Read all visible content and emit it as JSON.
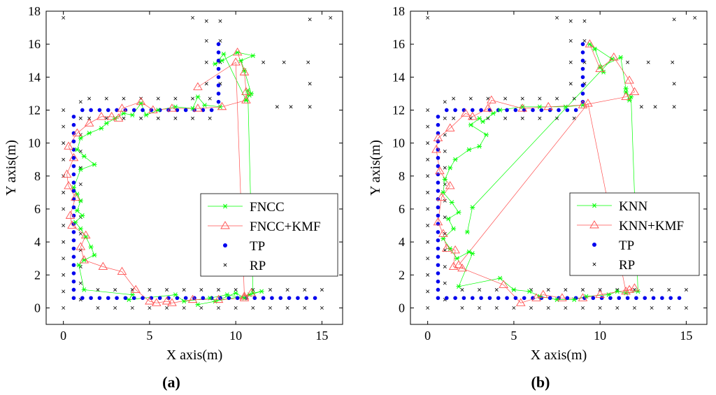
{
  "colors": {
    "trajectory_a": "#00ff00",
    "corrected": "#ff5050",
    "tp": "#0000ee",
    "rp": "#000000"
  },
  "chart_data": [
    {
      "id": "a",
      "type": "scatter",
      "panel_label": "(a)",
      "xlabel": "X axis(m)",
      "ylabel": "Y axis(m)",
      "xlim": [
        -1,
        16.2
      ],
      "ylim": [
        -1,
        18
      ],
      "xticks": [
        0,
        5,
        10,
        15
      ],
      "yticks": [
        0,
        2,
        4,
        6,
        8,
        10,
        12,
        14,
        16,
        18
      ],
      "legend_position": "right",
      "tp_points": "corridor grid",
      "rp_points": "reference grid",
      "series": [
        {
          "name": "FNCC",
          "marker": "star",
          "color": "#00ff00",
          "points": [
            [
              9.1,
              12.2
            ],
            [
              8.2,
              12.3
            ],
            [
              7.8,
              12.8
            ],
            [
              7.5,
              12.1
            ],
            [
              6.5,
              12.2
            ],
            [
              5.5,
              12.0
            ],
            [
              4.8,
              11.7
            ],
            [
              4.5,
              12.4
            ],
            [
              4.0,
              11.7
            ],
            [
              3.5,
              11.8
            ],
            [
              3.0,
              11.5
            ],
            [
              2.5,
              11.2
            ],
            [
              2.2,
              10.9
            ],
            [
              1.5,
              10.6
            ],
            [
              1.0,
              10.3
            ],
            [
              0.8,
              9.6
            ],
            [
              1.2,
              9.2
            ],
            [
              1.8,
              8.7
            ],
            [
              1.0,
              8.4
            ],
            [
              0.6,
              7.3
            ],
            [
              0.8,
              6.9
            ],
            [
              1.0,
              6.5
            ],
            [
              0.8,
              5.9
            ],
            [
              1.1,
              5.6
            ],
            [
              0.7,
              5.2
            ],
            [
              1.0,
              4.8
            ],
            [
              1.3,
              4.3
            ],
            [
              1.6,
              3.7
            ],
            [
              1.8,
              3.2
            ],
            [
              1.2,
              2.9
            ],
            [
              0.9,
              2.6
            ],
            [
              1.2,
              1.1
            ],
            [
              4.0,
              0.8
            ],
            [
              3.8,
              0.5
            ],
            [
              6.5,
              0.8
            ],
            [
              7.0,
              0.4
            ],
            [
              8.5,
              0.6
            ],
            [
              9.5,
              0.8
            ],
            [
              10.5,
              0.6
            ],
            [
              10.0,
              0.9
            ],
            [
              8.8,
              0.4
            ],
            [
              7.8,
              0.2
            ],
            [
              10.8,
              0.8
            ],
            [
              11.5,
              1.0
            ],
            [
              11.0,
              0.9
            ],
            [
              10.7,
              13.2
            ],
            [
              10.6,
              12.6
            ],
            [
              10.8,
              12.9
            ],
            [
              10.9,
              13.0
            ],
            [
              10.5,
              14.4
            ],
            [
              10.3,
              15.0
            ],
            [
              11.0,
              15.3
            ],
            [
              10.1,
              15.5
            ],
            [
              9.2,
              15.0
            ],
            [
              8.8,
              14.8
            ],
            [
              9.3,
              15.4
            ],
            [
              10.6,
              12.6
            ]
          ]
        },
        {
          "name": "FNCC+KMF",
          "marker": "triangle",
          "color": "#ff5050",
          "points": [
            [
              10.1,
              15.5
            ],
            [
              10.5,
              14.3
            ],
            [
              10.6,
              13.1
            ],
            [
              10.6,
              12.6
            ],
            [
              9.2,
              12.2
            ],
            [
              7.8,
              12.1
            ],
            [
              6.3,
              12.1
            ],
            [
              5.2,
              12.0
            ],
            [
              4.5,
              12.5
            ],
            [
              3.4,
              12.1
            ],
            [
              3.2,
              11.5
            ],
            [
              2.8,
              11.6
            ],
            [
              2.2,
              11.6
            ],
            [
              1.5,
              11.2
            ],
            [
              0.8,
              10.6
            ],
            [
              0.3,
              9.8
            ],
            [
              0.6,
              9.1
            ],
            [
              0.2,
              8.1
            ],
            [
              0.3,
              7.4
            ],
            [
              0.7,
              6.7
            ],
            [
              0.4,
              5.6
            ],
            [
              0.5,
              5.0
            ],
            [
              1.3,
              4.4
            ],
            [
              1.0,
              3.7
            ],
            [
              1.2,
              2.9
            ],
            [
              2.3,
              2.5
            ],
            [
              3.4,
              2.2
            ],
            [
              4.2,
              1.1
            ],
            [
              5.0,
              0.4
            ],
            [
              5.4,
              0.3
            ],
            [
              6.0,
              0.4
            ],
            [
              6.3,
              0.3
            ],
            [
              7.5,
              0.5
            ],
            [
              9.0,
              0.5
            ],
            [
              10.5,
              0.6
            ],
            [
              10.9,
              0.9
            ],
            [
              10.5,
              0.7
            ],
            [
              10.0,
              14.9
            ],
            [
              7.8,
              13.4
            ]
          ]
        },
        {
          "name": "TP",
          "marker": "dot",
          "color": "#0000ee"
        },
        {
          "name": "RP",
          "marker": "x",
          "color": "#000000"
        }
      ]
    },
    {
      "id": "b",
      "type": "scatter",
      "panel_label": "(b)",
      "xlabel": "X axis(m)",
      "ylabel": "Y axis(m)",
      "xlim": [
        -1,
        16.2
      ],
      "ylim": [
        -1,
        18
      ],
      "xticks": [
        0,
        5,
        10,
        15
      ],
      "yticks": [
        0,
        2,
        4,
        6,
        8,
        10,
        12,
        14,
        16,
        18
      ],
      "legend_position": "right",
      "tp_points": "corridor grid",
      "rp_points": "reference grid",
      "series": [
        {
          "name": "KNN",
          "marker": "star",
          "color": "#00ff00",
          "points": [
            [
              9.0,
              12.3
            ],
            [
              8.0,
              12.2
            ],
            [
              6.5,
              12.2
            ],
            [
              5.5,
              12.2
            ],
            [
              4.2,
              12.0
            ],
            [
              3.8,
              11.8
            ],
            [
              3.2,
              11.3
            ],
            [
              3.0,
              11.5
            ],
            [
              2.5,
              11.1
            ],
            [
              3.4,
              10.5
            ],
            [
              3.0,
              9.8
            ],
            [
              2.4,
              9.6
            ],
            [
              1.6,
              9.0
            ],
            [
              1.3,
              8.5
            ],
            [
              1.0,
              7.8
            ],
            [
              0.9,
              7.0
            ],
            [
              1.4,
              6.4
            ],
            [
              1.8,
              5.8
            ],
            [
              1.2,
              5.4
            ],
            [
              1.5,
              4.8
            ],
            [
              0.9,
              4.2
            ],
            [
              1.3,
              3.6
            ],
            [
              1.7,
              3.0
            ],
            [
              2.4,
              3.4
            ],
            [
              2.6,
              3.3
            ],
            [
              1.8,
              1.3
            ],
            [
              4.2,
              1.8
            ],
            [
              5.0,
              1.1
            ],
            [
              5.9,
              1.0
            ],
            [
              6.5,
              0.7
            ],
            [
              7.5,
              0.5
            ],
            [
              8.5,
              0.5
            ],
            [
              9.2,
              0.7
            ],
            [
              10.5,
              0.8
            ],
            [
              11.0,
              1.0
            ],
            [
              11.5,
              0.9
            ],
            [
              12.2,
              1.0
            ],
            [
              11.8,
              12.8
            ],
            [
              11.5,
              13.1
            ],
            [
              11.7,
              12.6
            ],
            [
              11.5,
              13.3
            ],
            [
              11.2,
              15.2
            ],
            [
              10.0,
              14.6
            ],
            [
              10.2,
              14.3
            ],
            [
              9.7,
              15.7
            ],
            [
              9.4,
              16.0
            ],
            [
              10.7,
              15.1
            ],
            [
              2.6,
              6.1
            ],
            [
              2.3,
              4.6
            ]
          ]
        },
        {
          "name": "KNN+KMF",
          "marker": "triangle",
          "color": "#ff5050",
          "points": [
            [
              9.4,
              16.0
            ],
            [
              10.0,
              14.5
            ],
            [
              10.8,
              15.2
            ],
            [
              11.7,
              13.8
            ],
            [
              12.0,
              13.1
            ],
            [
              11.5,
              12.8
            ],
            [
              9.0,
              12.3
            ],
            [
              7.0,
              12.2
            ],
            [
              5.5,
              12.1
            ],
            [
              3.7,
              12.6
            ],
            [
              3.5,
              12.1
            ],
            [
              2.6,
              11.6
            ],
            [
              2.2,
              11.8
            ],
            [
              1.3,
              10.9
            ],
            [
              0.6,
              10.3
            ],
            [
              0.5,
              9.6
            ],
            [
              0.7,
              8.3
            ],
            [
              1.3,
              7.4
            ],
            [
              0.8,
              6.7
            ],
            [
              0.6,
              5.2
            ],
            [
              0.9,
              4.5
            ],
            [
              1.1,
              3.6
            ],
            [
              1.6,
              3.5
            ],
            [
              1.5,
              2.5
            ],
            [
              2.0,
              2.4
            ],
            [
              4.4,
              1.4
            ],
            [
              5.4,
              0.3
            ],
            [
              6.3,
              0.6
            ],
            [
              6.7,
              0.8
            ],
            [
              7.8,
              0.6
            ],
            [
              9.0,
              0.6
            ],
            [
              10.0,
              0.8
            ],
            [
              11.7,
              1.1
            ],
            [
              12.0,
              1.2
            ],
            [
              11.5,
              1.0
            ],
            [
              9.3,
              12.4
            ],
            [
              1.8,
              2.6
            ]
          ]
        },
        {
          "name": "TP",
          "marker": "dot",
          "color": "#0000ee"
        },
        {
          "name": "RP",
          "marker": "x",
          "color": "#000000"
        }
      ]
    }
  ]
}
